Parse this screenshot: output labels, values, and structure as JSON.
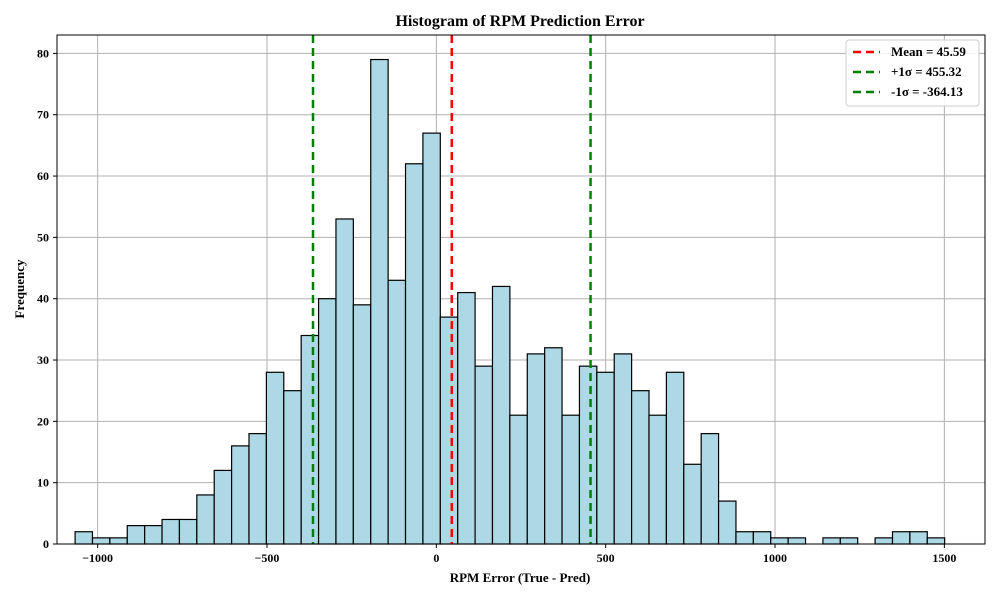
{
  "chart_data": {
    "type": "bar",
    "title": "Histogram of RPM Prediction Error",
    "xlabel": "RPM Error (True - Pred)",
    "ylabel": "Frequency",
    "xlim": [
      -1120,
      1620
    ],
    "ylim": [
      0,
      83
    ],
    "xticks": [
      -1000,
      -500,
      0,
      500,
      1000,
      1500
    ],
    "yticks": [
      0,
      10,
      20,
      30,
      40,
      50,
      60,
      70,
      80
    ],
    "grid": true,
    "legend_position": "top-right",
    "bin_start": -1066.6,
    "bin_width": 51.35,
    "values": [
      2,
      1,
      1,
      3,
      3,
      4,
      4,
      8,
      12,
      16,
      18,
      28,
      25,
      34,
      40,
      53,
      39,
      79,
      43,
      62,
      67,
      37,
      41,
      29,
      42,
      21,
      31,
      32,
      21,
      29,
      28,
      31,
      25,
      21,
      28,
      13,
      18,
      7,
      2,
      2,
      1,
      1,
      0,
      1,
      1,
      0,
      1,
      2,
      2,
      1
    ],
    "bar_color": "#add8e6",
    "bar_edge_color": "#000000",
    "reference_lines": [
      {
        "name": "Mean = 45.59",
        "x": 45.59,
        "color": "#ff0000"
      },
      {
        "name": "+1σ = 455.32",
        "x": 455.32,
        "color": "#008000"
      },
      {
        "name": "-1σ = -364.13",
        "x": -364.13,
        "color": "#008000"
      }
    ]
  }
}
